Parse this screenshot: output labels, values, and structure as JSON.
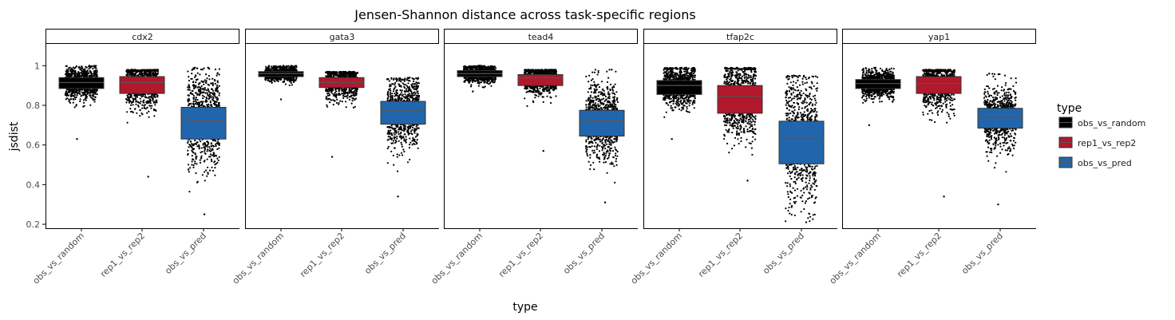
{
  "chart_data": {
    "type": "box",
    "title": "Jensen-Shannon distance across task-specific regions",
    "xlabel": "type",
    "ylabel": "jsdist",
    "ylim": [
      0.18,
      1.11
    ],
    "yticks": [
      0.2,
      0.4,
      0.6,
      0.8,
      1.0
    ],
    "ytick_labels": [
      "0.2",
      "0.4",
      "0.6",
      "0.8",
      "1"
    ],
    "categories": [
      "obs_vs_random",
      "rep1_vs_rep2",
      "obs_vs_pred"
    ],
    "facets": [
      "cdx2",
      "gata3",
      "tead4",
      "tfap2c",
      "yap1"
    ],
    "legend": {
      "title": "type",
      "position": "right",
      "items": [
        {
          "label": "obs_vs_random",
          "color": "#000000"
        },
        {
          "label": "rep1_vs_rep2",
          "color": "#b2182b"
        },
        {
          "label": "obs_vs_pred",
          "color": "#2166ac"
        }
      ]
    },
    "series": [
      {
        "facet": "cdx2",
        "boxes": [
          {
            "category": "obs_vs_random",
            "q1": 0.885,
            "median": 0.915,
            "q3": 0.94,
            "points_min": 0.63,
            "points_max": 1.0
          },
          {
            "category": "rep1_vs_rep2",
            "q1": 0.86,
            "median": 0.915,
            "q3": 0.945,
            "points_min": 0.44,
            "points_max": 0.98
          },
          {
            "category": "obs_vs_pred",
            "q1": 0.63,
            "median": 0.725,
            "q3": 0.79,
            "points_min": 0.25,
            "points_max": 0.99
          }
        ]
      },
      {
        "facet": "gata3",
        "boxes": [
          {
            "category": "obs_vs_random",
            "q1": 0.945,
            "median": 0.96,
            "q3": 0.97,
            "points_min": 0.83,
            "points_max": 1.0
          },
          {
            "category": "rep1_vs_rep2",
            "q1": 0.89,
            "median": 0.915,
            "q3": 0.94,
            "points_min": 0.54,
            "points_max": 0.97
          },
          {
            "category": "obs_vs_pred",
            "q1": 0.705,
            "median": 0.775,
            "q3": 0.82,
            "points_min": 0.34,
            "points_max": 0.94
          }
        ]
      },
      {
        "facet": "tead4",
        "boxes": [
          {
            "category": "obs_vs_random",
            "q1": 0.945,
            "median": 0.96,
            "q3": 0.975,
            "points_min": 0.87,
            "points_max": 1.0
          },
          {
            "category": "rep1_vs_rep2",
            "q1": 0.9,
            "median": 0.94,
            "q3": 0.955,
            "points_min": 0.57,
            "points_max": 0.98
          },
          {
            "category": "obs_vs_pred",
            "q1": 0.645,
            "median": 0.725,
            "q3": 0.775,
            "points_min": 0.31,
            "points_max": 0.98
          }
        ]
      },
      {
        "facet": "tfap2c",
        "boxes": [
          {
            "category": "obs_vs_random",
            "q1": 0.855,
            "median": 0.9,
            "q3": 0.925,
            "points_min": 0.63,
            "points_max": 0.99
          },
          {
            "category": "rep1_vs_rep2",
            "q1": 0.76,
            "median": 0.845,
            "q3": 0.9,
            "points_min": 0.42,
            "points_max": 0.99
          },
          {
            "category": "obs_vs_pred",
            "q1": 0.505,
            "median": 0.63,
            "q3": 0.72,
            "points_min": 0.21,
            "points_max": 0.95
          }
        ]
      },
      {
        "facet": "yap1",
        "boxes": [
          {
            "category": "obs_vs_random",
            "q1": 0.885,
            "median": 0.91,
            "q3": 0.93,
            "points_min": 0.7,
            "points_max": 0.99
          },
          {
            "category": "rep1_vs_rep2",
            "q1": 0.86,
            "median": 0.91,
            "q3": 0.945,
            "points_min": 0.34,
            "points_max": 0.98
          },
          {
            "category": "obs_vs_pred",
            "q1": 0.685,
            "median": 0.74,
            "q3": 0.785,
            "points_min": 0.3,
            "points_max": 0.96
          }
        ]
      }
    ]
  }
}
